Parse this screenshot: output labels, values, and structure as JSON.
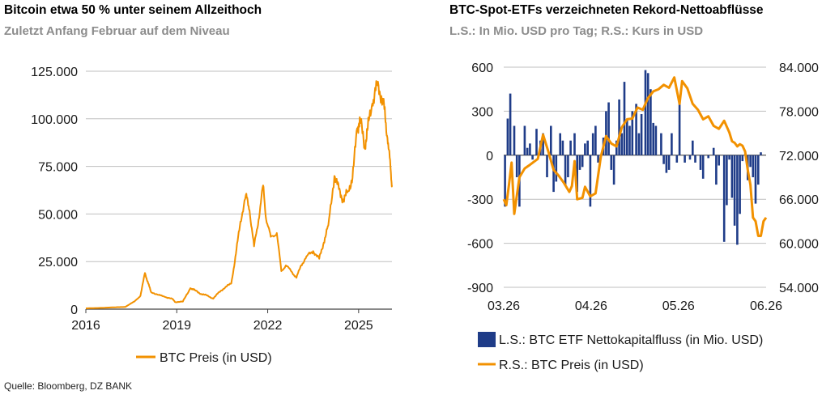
{
  "left_panel": {
    "title": "Bitcoin etwa 50 % unter seinem Allzeithoch",
    "subtitle": "Zuletzt Anfang Februar auf dem Niveau"
  },
  "right_panel": {
    "title": "BTC-Spot-ETFs verzeichneten Rekord-Nettoabflüsse",
    "subtitle": "L.S.: In Mio. USD pro Tag; R.S.: Kurs in USD"
  },
  "source": "Quelle: Bloomberg, DZ BANK",
  "colors": {
    "price": "#F29100",
    "flows": "#1F3C88",
    "grid": "#bfbfbf"
  },
  "chart_data": [
    {
      "type": "line",
      "y_tick_labels": [
        "0",
        "25.000",
        "50.000",
        "75.000",
        "100.000",
        "125.000"
      ],
      "x_tick_labels": [
        "2016",
        "2019",
        "2022",
        "2025"
      ],
      "x_ticks": [
        2016,
        2019,
        2022,
        2025
      ],
      "xlim": [
        2016,
        2026.1
      ],
      "ylim": [
        0,
        125000
      ],
      "grid": true,
      "legend_position": "bottom",
      "series": [
        {
          "name": "BTC Preis (in USD)",
          "x": [
            2016.0,
            2016.5,
            2017.0,
            2017.3,
            2017.6,
            2017.8,
            2017.95,
            2018.05,
            2018.15,
            2018.4,
            2018.6,
            2018.85,
            2018.95,
            2019.2,
            2019.45,
            2019.6,
            2019.8,
            2020.0,
            2020.2,
            2020.4,
            2020.6,
            2020.8,
            2020.95,
            2021.1,
            2021.28,
            2021.4,
            2021.55,
            2021.7,
            2021.85,
            2021.95,
            2022.1,
            2022.3,
            2022.45,
            2022.6,
            2022.8,
            2022.95,
            2023.1,
            2023.3,
            2023.5,
            2023.7,
            2023.85,
            2024.0,
            2024.2,
            2024.35,
            2024.5,
            2024.65,
            2024.8,
            2024.95,
            2025.05,
            2025.2,
            2025.3,
            2025.45,
            2025.6,
            2025.75,
            2025.85,
            2025.95,
            2026.05,
            2026.1
          ],
          "y": [
            430,
            670,
            1000,
            1200,
            4000,
            7000,
            19000,
            14000,
            9000,
            7500,
            6500,
            5500,
            3700,
            4000,
            11000,
            10000,
            8000,
            7200,
            5500,
            9000,
            11500,
            13500,
            29000,
            46000,
            60000,
            52000,
            33000,
            47000,
            65000,
            47000,
            38000,
            40000,
            20000,
            23000,
            19500,
            16500,
            23000,
            28000,
            30500,
            26500,
            35000,
            44000,
            70000,
            63000,
            57000,
            62000,
            69000,
            95000,
            100000,
            85000,
            95000,
            108000,
            118000,
            112000,
            105000,
            90000,
            75000,
            65000
          ]
        }
      ]
    },
    {
      "type": "bar+line",
      "left_tick_labels": [
        "600",
        "300",
        "0",
        "-300",
        "-600",
        "-900"
      ],
      "left_ylim": [
        -900,
        600
      ],
      "right_tick_labels": [
        "84.000",
        "78.000",
        "72.000",
        "66.000",
        "60.000",
        "54.000"
      ],
      "right_ylim": [
        54000,
        84000
      ],
      "x_tick_labels": [
        "03.26",
        "04.26",
        "05.26",
        "06.26"
      ],
      "grid": true,
      "legend_position": "bottom",
      "series": [
        {
          "name": "L.S.: BTC ETF Nettokapitalfluss (in Mio. USD)",
          "type": "bar",
          "axis": "left",
          "x": [
            0.5,
            1.5,
            2.5,
            4,
            5,
            6,
            8,
            9,
            10,
            11,
            12.5,
            14,
            15,
            16.5,
            18,
            19,
            20,
            21.5,
            22.5,
            23.5,
            24.5,
            25.5,
            27,
            28,
            29,
            30,
            31,
            32,
            33,
            34,
            35,
            36,
            38,
            39,
            40,
            41,
            42,
            43,
            44,
            45,
            46,
            47,
            48,
            49,
            50.5,
            51.5,
            52.5,
            54,
            55,
            56,
            57,
            58,
            60,
            61,
            62,
            63,
            64,
            66,
            67,
            69,
            71,
            72,
            73,
            75,
            76,
            78,
            80,
            81,
            82,
            84,
            85,
            86,
            87,
            88,
            89,
            90,
            91,
            93,
            94,
            95,
            96,
            97,
            98
          ],
          "y": [
            -350,
            250,
            420,
            200,
            -150,
            -350,
            200,
            50,
            80,
            -30,
            180,
            100,
            150,
            -150,
            200,
            -250,
            -180,
            150,
            100,
            -200,
            -150,
            100,
            150,
            -250,
            -100,
            -80,
            80,
            100,
            -350,
            150,
            200,
            -50,
            120,
            300,
            360,
            -100,
            -200,
            100,
            380,
            150,
            500,
            250,
            200,
            300,
            350,
            150,
            280,
            580,
            560,
            450,
            220,
            200,
            150,
            -60,
            -120,
            -100,
            150,
            -50,
            400,
            -50,
            -30,
            100,
            -50,
            -100,
            -160,
            -20,
            50,
            -200,
            -70,
            -590,
            -340,
            -30,
            -290,
            -480,
            -610,
            -400,
            -40,
            -170,
            -80,
            -150,
            -330,
            -200,
            20
          ]
        },
        {
          "name": "R.S.: BTC Preis (in USD)",
          "type": "line",
          "axis": "right",
          "x": [
            0,
            1,
            2,
            3,
            4,
            6,
            8,
            10,
            13,
            15,
            17,
            19,
            21,
            23,
            25,
            26,
            27,
            28,
            30,
            31,
            33,
            35,
            37,
            39,
            41,
            43,
            45,
            47,
            49,
            51,
            53,
            55,
            57,
            59,
            61,
            63,
            65,
            67,
            68,
            70,
            72,
            74,
            76,
            78,
            80,
            82,
            84,
            86,
            87,
            88,
            89,
            90,
            91,
            92,
            93,
            94,
            95,
            96,
            97,
            98,
            99,
            100
          ],
          "y": [
            66000,
            65200,
            68000,
            71000,
            64000,
            69000,
            70200,
            70700,
            71500,
            74800,
            72500,
            70000,
            69200,
            68200,
            67000,
            67800,
            71200,
            66000,
            66200,
            67700,
            66400,
            66800,
            71800,
            74600,
            73600,
            73200,
            75800,
            76900,
            77000,
            78500,
            78200,
            79800,
            80700,
            81000,
            81600,
            81200,
            82600,
            79000,
            82100,
            81100,
            79000,
            78200,
            76900,
            77300,
            76000,
            75600,
            76700,
            75100,
            73900,
            73700,
            73200,
            73500,
            73300,
            72500,
            70000,
            68000,
            63500,
            63000,
            61000,
            61000,
            63000,
            63500
          ]
        }
      ]
    }
  ]
}
